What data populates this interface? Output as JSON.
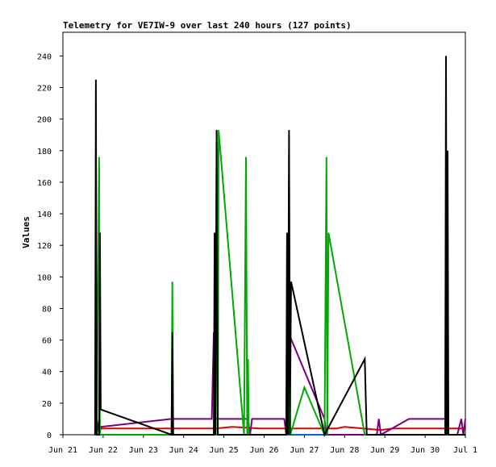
{
  "chart_data": {
    "type": "line",
    "title": "Telemetry for VE7IW-9 over last 240 hours (127 points)",
    "xlabel": "",
    "ylabel": "Values",
    "ylim": [
      0,
      255
    ],
    "xlim": [
      0,
      10
    ],
    "yticks": [
      0,
      20,
      40,
      60,
      80,
      100,
      120,
      140,
      160,
      180,
      200,
      220,
      240
    ],
    "xticks": [
      {
        "x": 0,
        "label": "Jun 21"
      },
      {
        "x": 1,
        "label": "Jun 22"
      },
      {
        "x": 2,
        "label": "Jun 23"
      },
      {
        "x": 3,
        "label": "Jun 24"
      },
      {
        "x": 4,
        "label": "Jun 25"
      },
      {
        "x": 5,
        "label": "Jun 26"
      },
      {
        "x": 6,
        "label": "Jun 27"
      },
      {
        "x": 7,
        "label": "Jun 28"
      },
      {
        "x": 8,
        "label": "Jun 29"
      },
      {
        "x": 9,
        "label": "Jun 30"
      },
      {
        "x": 10,
        "label": "Jul 1"
      }
    ],
    "grid": false,
    "series": [
      {
        "color": "#0066cc",
        "points": [
          [
            0.8,
            0
          ],
          [
            10,
            0
          ]
        ]
      },
      {
        "color": "#dd0000",
        "points": [
          [
            0.8,
            0
          ],
          [
            0.82,
            4
          ],
          [
            0.95,
            4
          ],
          [
            2,
            4
          ],
          [
            3,
            4
          ],
          [
            3.8,
            4
          ],
          [
            4.2,
            5
          ],
          [
            4.9,
            4
          ],
          [
            6.8,
            4
          ],
          [
            7.0,
            5
          ],
          [
            7.9,
            3
          ],
          [
            8.2,
            4
          ],
          [
            9.2,
            4
          ],
          [
            10,
            4
          ]
        ]
      },
      {
        "color": "#7a007a",
        "points": [
          [
            0.8,
            0
          ],
          [
            0.85,
            9
          ],
          [
            0.9,
            0
          ],
          [
            0.95,
            5
          ],
          [
            2.7,
            10
          ],
          [
            3.7,
            10
          ],
          [
            3.75,
            65
          ],
          [
            3.78,
            10
          ],
          [
            4.6,
            10
          ],
          [
            4.65,
            0
          ],
          [
            4.7,
            10
          ],
          [
            5.5,
            10
          ],
          [
            5.55,
            0
          ],
          [
            5.6,
            65
          ],
          [
            6.5,
            10
          ],
          [
            6.55,
            0
          ],
          [
            7.8,
            0
          ],
          [
            7.85,
            10
          ],
          [
            7.9,
            0
          ],
          [
            8.6,
            10
          ],
          [
            9.5,
            10
          ],
          [
            9.55,
            0
          ],
          [
            9.8,
            0
          ],
          [
            9.9,
            10
          ],
          [
            9.95,
            0
          ],
          [
            10,
            10
          ]
        ]
      },
      {
        "color": "#00aa00",
        "points": [
          [
            0.8,
            0
          ],
          [
            0.82,
            64
          ],
          [
            0.84,
            0
          ],
          [
            0.9,
            176
          ],
          [
            0.92,
            0
          ],
          [
            2.7,
            0
          ],
          [
            2.72,
            97
          ],
          [
            2.74,
            0
          ],
          [
            3.8,
            0
          ],
          [
            3.82,
            193
          ],
          [
            3.85,
            0
          ],
          [
            3.87,
            193
          ],
          [
            4.5,
            0
          ],
          [
            4.55,
            176
          ],
          [
            4.58,
            0
          ],
          [
            4.6,
            48
          ],
          [
            4.62,
            0
          ],
          [
            5.6,
            0
          ],
          [
            5.62,
            177
          ],
          [
            5.65,
            0
          ],
          [
            6.0,
            30
          ],
          [
            6.5,
            0
          ],
          [
            6.55,
            176
          ],
          [
            6.57,
            0
          ],
          [
            6.6,
            128
          ],
          [
            7.5,
            0
          ],
          [
            9.5,
            0
          ],
          [
            9.52,
            145
          ],
          [
            9.55,
            0
          ],
          [
            10,
            0
          ]
        ]
      },
      {
        "color": "#000000",
        "points": [
          [
            0.8,
            0
          ],
          [
            0.82,
            225
          ],
          [
            0.84,
            0
          ],
          [
            0.9,
            0
          ],
          [
            0.92,
            128
          ],
          [
            0.94,
            16
          ],
          [
            2.7,
            0
          ],
          [
            2.72,
            65
          ],
          [
            2.74,
            0
          ],
          [
            3.75,
            0
          ],
          [
            3.77,
            128
          ],
          [
            3.79,
            0
          ],
          [
            3.82,
            193
          ],
          [
            3.85,
            0
          ],
          [
            5.55,
            0
          ],
          [
            5.57,
            128
          ],
          [
            5.59,
            0
          ],
          [
            5.62,
            193
          ],
          [
            5.64,
            0
          ],
          [
            5.67,
            97
          ],
          [
            6.5,
            0
          ],
          [
            7.5,
            48
          ],
          [
            7.55,
            0
          ],
          [
            9.5,
            0
          ],
          [
            9.52,
            240
          ],
          [
            9.54,
            0
          ],
          [
            9.56,
            180
          ],
          [
            9.58,
            0
          ],
          [
            10,
            0
          ]
        ]
      }
    ]
  }
}
